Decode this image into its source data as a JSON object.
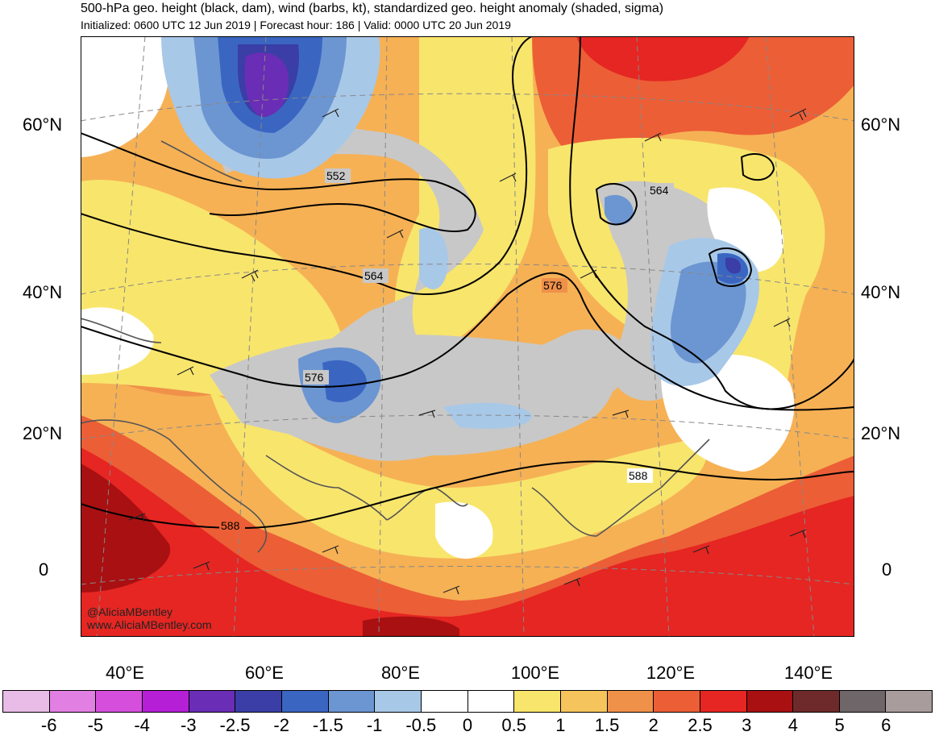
{
  "header": {
    "title": "500-hPa geo. height (black, dam), wind (barbs, kt), standardized geo. height anomaly (shaded, sigma)",
    "subtitle": "Initialized: 0600 UTC 12 Jun 2019 | Forecast hour: 186 | Valid: 0000 UTC 20 Jun 2019"
  },
  "map": {
    "lat_labels": [
      "60°N",
      "40°N",
      "20°N",
      "0"
    ],
    "lon_labels": [
      "40°E",
      "60°E",
      "80°E",
      "100°E",
      "120°E",
      "140°E"
    ],
    "contour_labels": [
      "552",
      "564",
      "564",
      "576",
      "576",
      "588",
      "588"
    ],
    "credit_handle": "@AliciaMBentley",
    "credit_site": "www.AliciaMBentley.com"
  },
  "colorbar": {
    "labels": [
      "-6",
      "-5",
      "-4",
      "-3",
      "-2.5",
      "-2",
      "-1.5",
      "-1",
      "-0.5",
      "0",
      "0.5",
      "1",
      "1.5",
      "2",
      "2.5",
      "3",
      "4",
      "5",
      "6"
    ],
    "colors": [
      "#e8bce6",
      "#e17fe3",
      "#d64fdc",
      "#b51fd6",
      "#6a2db5",
      "#3a3ea6",
      "#3a66c2",
      "#6c96d2",
      "#a8c8e8",
      "#ffffff",
      "#ffffff",
      "#f8e56c",
      "#f6c45c",
      "#f0914a",
      "#ec5e36",
      "#e52622",
      "#a81012",
      "#6e2a2a",
      "#6e6668",
      "#a89c9c"
    ]
  },
  "chart_data": {
    "type": "heatmap",
    "title": "500-hPa geo. height (black, dam), wind (barbs, kt), standardized geo. height anomaly (shaded, sigma)",
    "valid_time": "0000 UTC 20 Jun 2019",
    "forecast_hour": 186,
    "contour_levels_dam": [
      552,
      564,
      576,
      588
    ],
    "colorbar_bounds_sigma": [
      -6,
      -5,
      -4,
      -3,
      -2.5,
      -2,
      -1.5,
      -1,
      -0.5,
      0,
      0.5,
      1,
      1.5,
      2,
      2.5,
      3,
      4,
      5,
      6
    ],
    "lat_range": [
      "0",
      "60°N"
    ],
    "lon_range": [
      "40°E",
      "140°E"
    ],
    "grid": true,
    "features": [
      {
        "name": "negative anomaly over northern Urals",
        "anomaly_sigma": -2.5
      },
      {
        "name": "negative anomaly over Tibetan Plateau",
        "anomaly_sigma": -1.5
      },
      {
        "name": "negative anomaly over NE China / Korea",
        "anomaly_sigma": -2
      },
      {
        "name": "positive anomaly over Mongolia",
        "anomaly_sigma": 2
      },
      {
        "name": "positive anomaly over Siberia north",
        "anomaly_sigma": 2.5
      },
      {
        "name": "positive anomaly over tropics",
        "anomaly_sigma": 3
      }
    ]
  }
}
